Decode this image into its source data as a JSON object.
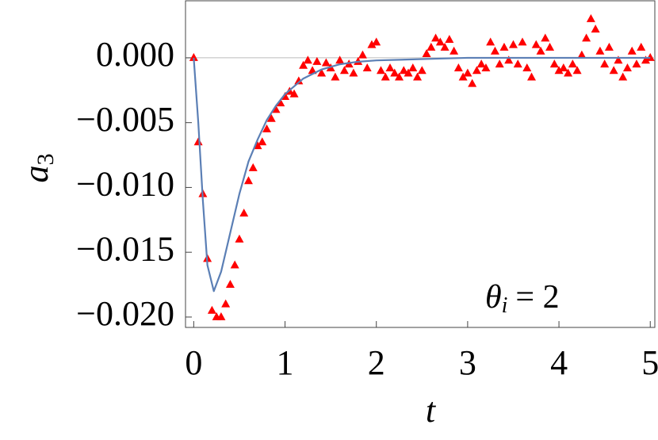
{
  "chart_data": {
    "type": "scatter",
    "x_label": "t",
    "y_label": {
      "symbol": "a",
      "subscript": "3"
    },
    "annotation": {
      "symbol": "θ",
      "subscript": "i",
      "text": "= 2"
    },
    "xlim": [
      -0.09,
      5.05
    ],
    "ylim": [
      -0.0208,
      0.0044
    ],
    "xticks": [
      0,
      1,
      2,
      3,
      4,
      5
    ],
    "yticks": [
      {
        "value": 0,
        "label": "0.000"
      },
      {
        "value": -0.005,
        "label": "−0.005"
      },
      {
        "value": -0.01,
        "label": "−0.010"
      },
      {
        "value": -0.015,
        "label": "−0.015"
      },
      {
        "value": -0.02,
        "label": "−0.020"
      }
    ],
    "zero_line": true,
    "series": [
      {
        "mode": "markers",
        "color": "#ff0000",
        "x": [
          0,
          0.05,
          0.1,
          0.15,
          0.2,
          0.25,
          0.3,
          0.35,
          0.4,
          0.45,
          0.5,
          0.55,
          0.6,
          0.65,
          0.7,
          0.75,
          0.8,
          0.85,
          0.9,
          0.95,
          1,
          1.05,
          1.1,
          1.15,
          1.2,
          1.25,
          1.3,
          1.35,
          1.4,
          1.45,
          1.5,
          1.55,
          1.6,
          1.65,
          1.7,
          1.75,
          1.8,
          1.85,
          1.9,
          1.95,
          2,
          2.05,
          2.1,
          2.15,
          2.2,
          2.25,
          2.3,
          2.35,
          2.4,
          2.45,
          2.5,
          2.55,
          2.6,
          2.65,
          2.7,
          2.75,
          2.8,
          2.85,
          2.9,
          2.95,
          3,
          3.05,
          3.1,
          3.15,
          3.2,
          3.25,
          3.3,
          3.35,
          3.4,
          3.45,
          3.5,
          3.55,
          3.6,
          3.65,
          3.7,
          3.75,
          3.8,
          3.85,
          3.9,
          3.95,
          4,
          4.05,
          4.1,
          4.15,
          4.2,
          4.25,
          4.3,
          4.35,
          4.4,
          4.45,
          4.5,
          4.55,
          4.6,
          4.65,
          4.7,
          4.75,
          4.8,
          4.85,
          4.9,
          4.95,
          5
        ],
        "values": [
          0,
          -0.0065,
          -0.0105,
          -0.0155,
          -0.0195,
          -0.02,
          -0.02,
          -0.019,
          -0.0175,
          -0.016,
          -0.014,
          -0.012,
          -0.0095,
          -0.0085,
          -0.0068,
          -0.0065,
          -0.0055,
          -0.0047,
          -0.004,
          -0.0035,
          -0.003,
          -0.0026,
          -0.0028,
          -0.0018,
          -0.0006,
          -0.0002,
          -0.001,
          -0.0003,
          -0.0012,
          -0.0004,
          -0.0008,
          -0.0015,
          -0.0002,
          -0.001,
          -0.0005,
          -0.0012,
          -0.0003,
          0.0002,
          -0.0008,
          0.001,
          0.0012,
          -0.001,
          -0.0015,
          -0.0008,
          -0.0012,
          -0.0015,
          -0.001,
          -0.0012,
          -0.0008,
          -0.0015,
          -0.001,
          0.0003,
          0.0008,
          0.0015,
          0.0012,
          0.0008,
          0.0014,
          0.0005,
          -0.0008,
          -0.0015,
          -0.0012,
          -0.002,
          -0.001,
          -0.0005,
          -0.0008,
          0.0012,
          0.0005,
          -0.0005,
          0.0008,
          -0.0002,
          0.001,
          -0.0005,
          0.0012,
          -0.0008,
          -0.0015,
          0.001,
          0.0005,
          0.0015,
          0.0008,
          -0.0005,
          -0.001,
          -0.0008,
          -0.0012,
          -0.0005,
          -0.001,
          0.0002,
          0.0015,
          0.003,
          0.0022,
          0.0005,
          -0.0005,
          0.0008,
          -0.001,
          -0.0002,
          -0.0015,
          -0.0008,
          0.0005,
          -0.0005,
          0.0008,
          -0.0002,
          0
        ]
      },
      {
        "mode": "line",
        "color": "#5b7fb5",
        "x": [
          0,
          0.05,
          0.1,
          0.15,
          0.22,
          0.3,
          0.4,
          0.5,
          0.6,
          0.7,
          0.8,
          0.9,
          1,
          1.2,
          1.4,
          1.6,
          1.8,
          2,
          2.5,
          3,
          4,
          5
        ],
        "values": [
          0,
          -0.005,
          -0.011,
          -0.016,
          -0.018,
          -0.0165,
          -0.0135,
          -0.0105,
          -0.008,
          -0.0063,
          -0.0048,
          -0.0037,
          -0.0028,
          -0.0016,
          -0.0009,
          -0.0005,
          -0.0003,
          -0.0002,
          -0.0001,
          0,
          0,
          0
        ]
      }
    ]
  }
}
